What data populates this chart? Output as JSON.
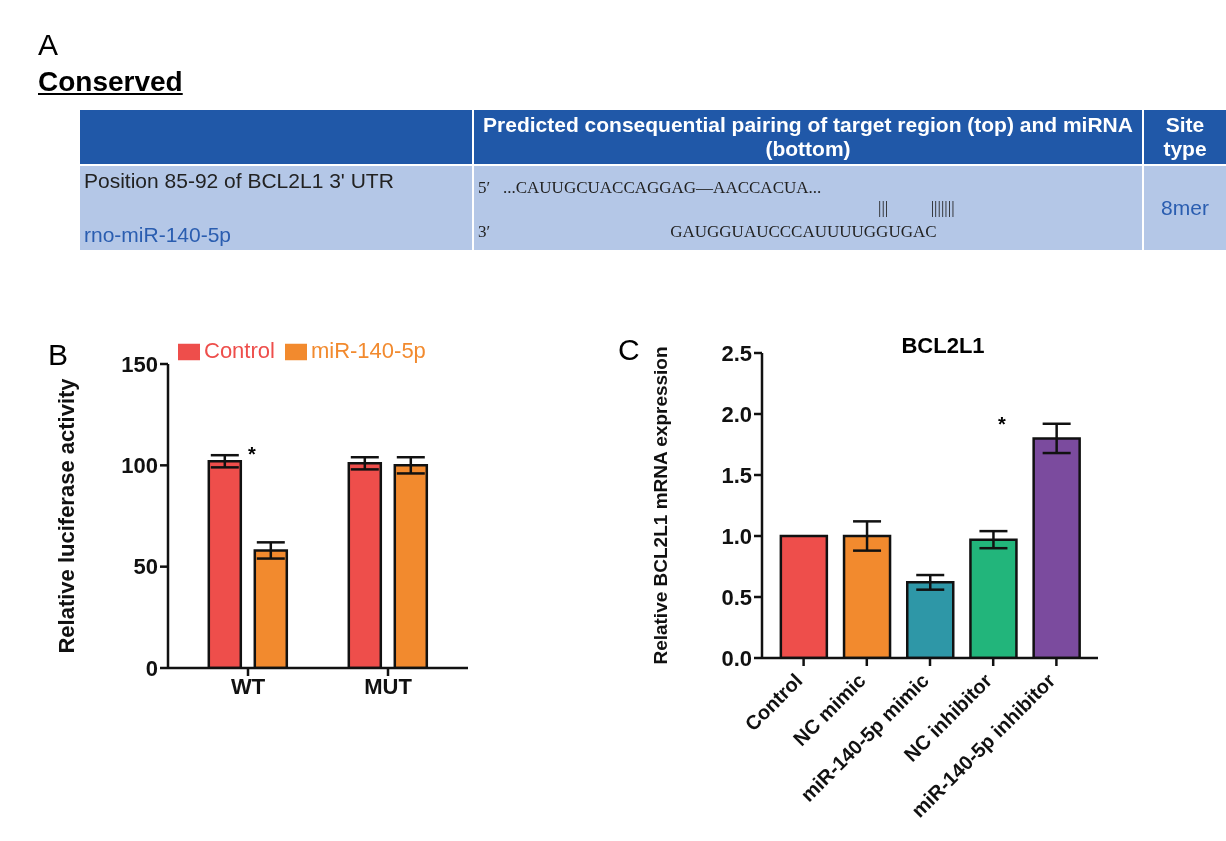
{
  "chart_data": [
    {
      "type": "other",
      "title": "Conserved",
      "annotations": [
        "A",
        "Predicted consequential pairing of target region (top) and miRNA (bottom)",
        "Site type",
        "Position 85-92 of BCL2L1 3' UTR",
        "5′",
        "...CAUUGCUACCAGGAG—AACCACUA...",
        "|||          |||||||",
        "rno-miR-140-5p",
        "3′",
        "GAUGGUAUCCCAUUUUGGUGAC",
        "8mer"
      ]
    },
    {
      "type": "bar",
      "categories": [
        "WT",
        "MUT"
      ],
      "ylabel": "Relative luciferase activity",
      "ylim": [
        0,
        150
      ],
      "yticks": [
        0,
        50,
        100,
        150
      ],
      "legend": "top",
      "annotations": [
        "B",
        "*"
      ],
      "series": [
        {
          "name": "Control",
          "color": "#ee4e4b",
          "values": [
            102,
            101
          ],
          "errors": [
            3,
            3
          ]
        },
        {
          "name": "miR-140-5p",
          "color": "#f28a2e",
          "values": [
            58,
            100
          ],
          "errors": [
            4,
            4
          ]
        }
      ]
    },
    {
      "type": "bar",
      "title": "BCL2L1",
      "ylabel": "Relative BCL2L1 mRNA expression",
      "categories": [
        "Control",
        "NC mimic",
        "miR-140-5p mimic",
        "NC inhibitor",
        "miR-140-5p inhibitor"
      ],
      "values": [
        1.0,
        1.0,
        0.62,
        0.97,
        1.8
      ],
      "errors": [
        null,
        0.12,
        0.06,
        0.07,
        0.12
      ],
      "colors": [
        "#ee4e4b",
        "#f28a2e",
        "#2e97a7",
        "#22b57b",
        "#7b4b9e"
      ],
      "ylim": [
        0,
        2.5
      ],
      "yticks": [
        {
          "value": 0,
          "label": "0.0"
        },
        {
          "value": 0.5,
          "label": "0.5"
        },
        {
          "value": 1,
          "label": "1.0"
        },
        {
          "value": 1.5,
          "label": "1.5"
        },
        {
          "value": 2,
          "label": "2.0"
        },
        {
          "value": 2.5,
          "label": "2.5"
        }
      ],
      "annotations": [
        "C",
        "*"
      ]
    }
  ]
}
